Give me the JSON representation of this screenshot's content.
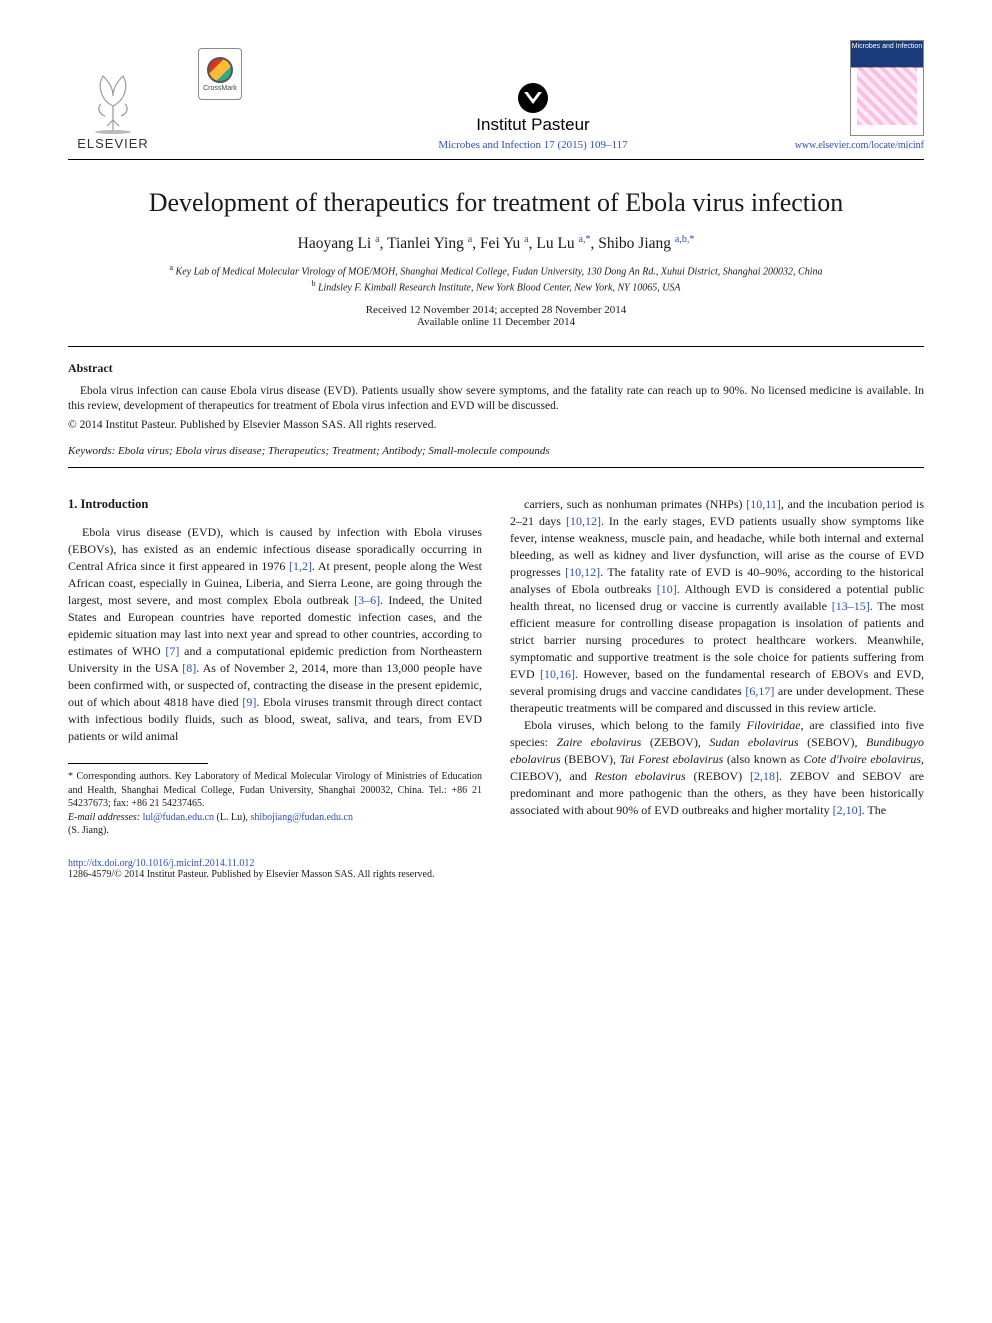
{
  "colors": {
    "link": "#2d4fb3",
    "text": "#1a1a1a",
    "background": "#ffffff",
    "hr": "#000000",
    "cover_top": "#1a3a7a"
  },
  "typography": {
    "body_font": "Times New Roman",
    "title_fontsize_pt": 20,
    "body_fontsize_pt": 9,
    "abstract_fontsize_pt": 8.5,
    "footnote_fontsize_pt": 7.5
  },
  "header": {
    "publisher_logo_label": "ELSEVIER",
    "crossmark_label": "CrossMark",
    "institute_name": "Institut Pasteur",
    "journal_reference": "Microbes and Infection 17 (2015) 109–117",
    "journal_cover_title": "Microbes and Infection",
    "locate_url": "www.elsevier.com/locate/micinf"
  },
  "article": {
    "title": "Development of therapeutics for treatment of Ebola virus infection",
    "authors_html_parts": {
      "a1_name": "Haoyang Li",
      "a1_sup": "a",
      "a2_name": "Tianlei Ying",
      "a2_sup": "a",
      "a3_name": "Fei Yu",
      "a3_sup": "a",
      "a4_name": "Lu Lu",
      "a4_sup": "a,*",
      "a5_name": "Shibo Jiang",
      "a5_sup": "a,b,*"
    },
    "affiliations": {
      "a": "Key Lab of Medical Molecular Virology of MOE/MOH, Shanghai Medical College, Fudan University, 130 Dong An Rd., Xuhui District, Shanghai 200032, China",
      "b": "Lindsley F. Kimball Research Institute, New York Blood Center, New York, NY 10065, USA"
    },
    "dates": {
      "received_accepted": "Received 12 November 2014; accepted 28 November 2014",
      "online": "Available online 11 December 2014"
    },
    "abstract": {
      "heading": "Abstract",
      "text": "Ebola virus infection can cause Ebola virus disease (EVD). Patients usually show severe symptoms, and the fatality rate can reach up to 90%. No licensed medicine is available. In this review, development of therapeutics for treatment of Ebola virus infection and EVD will be discussed.",
      "copyright": "© 2014 Institut Pasteur. Published by Elsevier Masson SAS. All rights reserved."
    },
    "keywords": {
      "label": "Keywords:",
      "text": "Ebola virus; Ebola virus disease; Therapeutics; Treatment; Antibody; Small-molecule compounds"
    }
  },
  "body": {
    "section1_heading": "1. Introduction",
    "col_left_text": "Ebola virus disease (EVD), which is caused by infection with Ebola viruses (EBOVs), has existed as an endemic infectious disease sporadically occurring in Central Africa since it first appeared in 1976 [1,2]. At present, people along the West African coast, especially in Guinea, Liberia, and Sierra Leone, are going through the largest, most severe, and most complex Ebola outbreak [3–6]. Indeed, the United States and European countries have reported domestic infection cases, and the epidemic situation may last into next year and spread to other countries, according to estimates of WHO [7] and a computational epidemic prediction from Northeastern University in the USA [8]. As of November 2, 2014, more than 13,000 people have been confirmed with, or suspected of, contracting the disease in the present epidemic, out of which about 4818 have died [9]. Ebola viruses transmit through direct contact with infectious bodily fluids, such as blood, sweat, saliva, and tears, from EVD patients or wild animal",
    "col_right_text_p1": "carriers, such as nonhuman primates (NHPs) [10,11], and the incubation period is 2–21 days [10,12]. In the early stages, EVD patients usually show symptoms like fever, intense weakness, muscle pain, and headache, while both internal and external bleeding, as well as kidney and liver dysfunction, will arise as the course of EVD progresses [10,12]. The fatality rate of EVD is 40–90%, according to the historical analyses of Ebola outbreaks [10]. Although EVD is considered a potential public health threat, no licensed drug or vaccine is currently available [13–15]. The most efficient measure for controlling disease propagation is insolation of patients and strict barrier nursing procedures to protect healthcare workers. Meanwhile, symptomatic and supportive treatment is the sole choice for patients suffering from EVD [10,16]. However, based on the fundamental research of EBOVs and EVD, several promising drugs and vaccine candidates [6,17] are under development. These therapeutic treatments will be compared and discussed in this review article.",
    "col_right_text_p2_prefix": "Ebola viruses, which belong to the family ",
    "col_right_text_p2_family": "Filoviridae",
    "col_right_text_p2_mid": ", are classified into five species: ",
    "species": {
      "s1": "Zaire ebolavirus",
      "s1_abbr": " (ZEBOV), ",
      "s2": "Sudan ebolavirus",
      "s2_abbr": " (SEBOV), ",
      "s3": "Bundibugyo ebolavirus",
      "s3_abbr": " (BEBOV), ",
      "s4": "Tai Forest ebolavirus",
      "s4_paren_pre": " (also known as ",
      "s4_alt": "Cote d'Ivoire ebolavirus",
      "s4_abbr": ", CIEBOV), and ",
      "s5": "Reston ebolavirus",
      "s5_abbr": " (REBOV) "
    },
    "col_right_text_p2_tail": "[2,18]. ZEBOV and SEBOV are predominant and more pathogenic than the others, as they have been historically associated with about 90% of EVD outbreaks and higher mortality [2,10]. The",
    "refs_in_text": [
      "[1,2]",
      "[3–6]",
      "[7]",
      "[8]",
      "[9]",
      "[10,11]",
      "[10,12]",
      "[10,12]",
      "[10]",
      "[13–15]",
      "[10,16]",
      "[6,17]",
      "[2,18]",
      "[2,10]"
    ]
  },
  "footnotes": {
    "corresponding": "* Corresponding authors. Key Laboratory of Medical Molecular Virology of Ministries of Education and Health, Shanghai Medical College, Fudan University, Shanghai 200032, China. Tel.: +86 21 54237673; fax: +86 21 54237465.",
    "email_label": "E-mail addresses:",
    "email1": "lul@fudan.edu.cn",
    "email1_who": " (L. Lu), ",
    "email2": "shibojiang@fudan.edu.cn",
    "email2_who": " (S. Jiang)."
  },
  "doi": {
    "url": "http://dx.doi.org/10.1016/j.micinf.2014.11.012",
    "issn_line": "1286-4579/© 2014 Institut Pasteur. Published by Elsevier Masson SAS. All rights reserved."
  }
}
